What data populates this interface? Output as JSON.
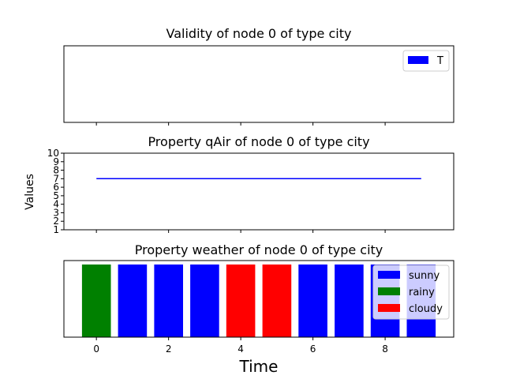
{
  "colors": {
    "sunny": "#0000ff",
    "rainy": "#008000",
    "cloudy": "#ff0000",
    "T": "#0000ff"
  },
  "chart_data": [
    {
      "type": "bar",
      "title": "Validity of node 0 of type city",
      "legend": {
        "entries": [
          {
            "label": "T",
            "color": "#0000ff"
          }
        ],
        "placement": "top-right"
      },
      "x": [],
      "values": [],
      "xlim": [
        -0.9,
        9.9
      ],
      "grid": false
    },
    {
      "type": "line",
      "title": "Property qAir of node 0 of type city",
      "ylabel": "Values",
      "x": [
        0,
        1,
        2,
        3,
        4,
        5,
        6,
        7,
        8,
        9
      ],
      "series": [
        {
          "values": [
            7,
            7,
            7,
            7,
            7,
            7,
            7,
            7,
            7,
            7
          ],
          "color": "#0000ff"
        }
      ],
      "ylim": [
        1,
        10
      ],
      "yticks": [
        "1",
        "2",
        "3",
        "4",
        "5",
        "6",
        "7",
        "8",
        "9",
        "10"
      ],
      "xlim": [
        -0.9,
        9.9
      ],
      "grid": false
    },
    {
      "type": "bar",
      "title": "Property weather of node 0 of type city",
      "xlabel": "Time",
      "x": [
        0,
        1,
        2,
        3,
        4,
        5,
        6,
        7,
        8,
        9
      ],
      "categories": [
        "rainy",
        "sunny",
        "sunny",
        "sunny",
        "cloudy",
        "cloudy",
        "sunny",
        "sunny",
        "sunny",
        "sunny"
      ],
      "xticks": [
        "0",
        "2",
        "4",
        "6",
        "8"
      ],
      "xlim": [
        -0.9,
        9.9
      ],
      "legend": {
        "entries": [
          {
            "label": "sunny",
            "color": "#0000ff"
          },
          {
            "label": "rainy",
            "color": "#008000"
          },
          {
            "label": "cloudy",
            "color": "#ff0000"
          }
        ],
        "placement": "top-right"
      },
      "grid": false
    }
  ]
}
